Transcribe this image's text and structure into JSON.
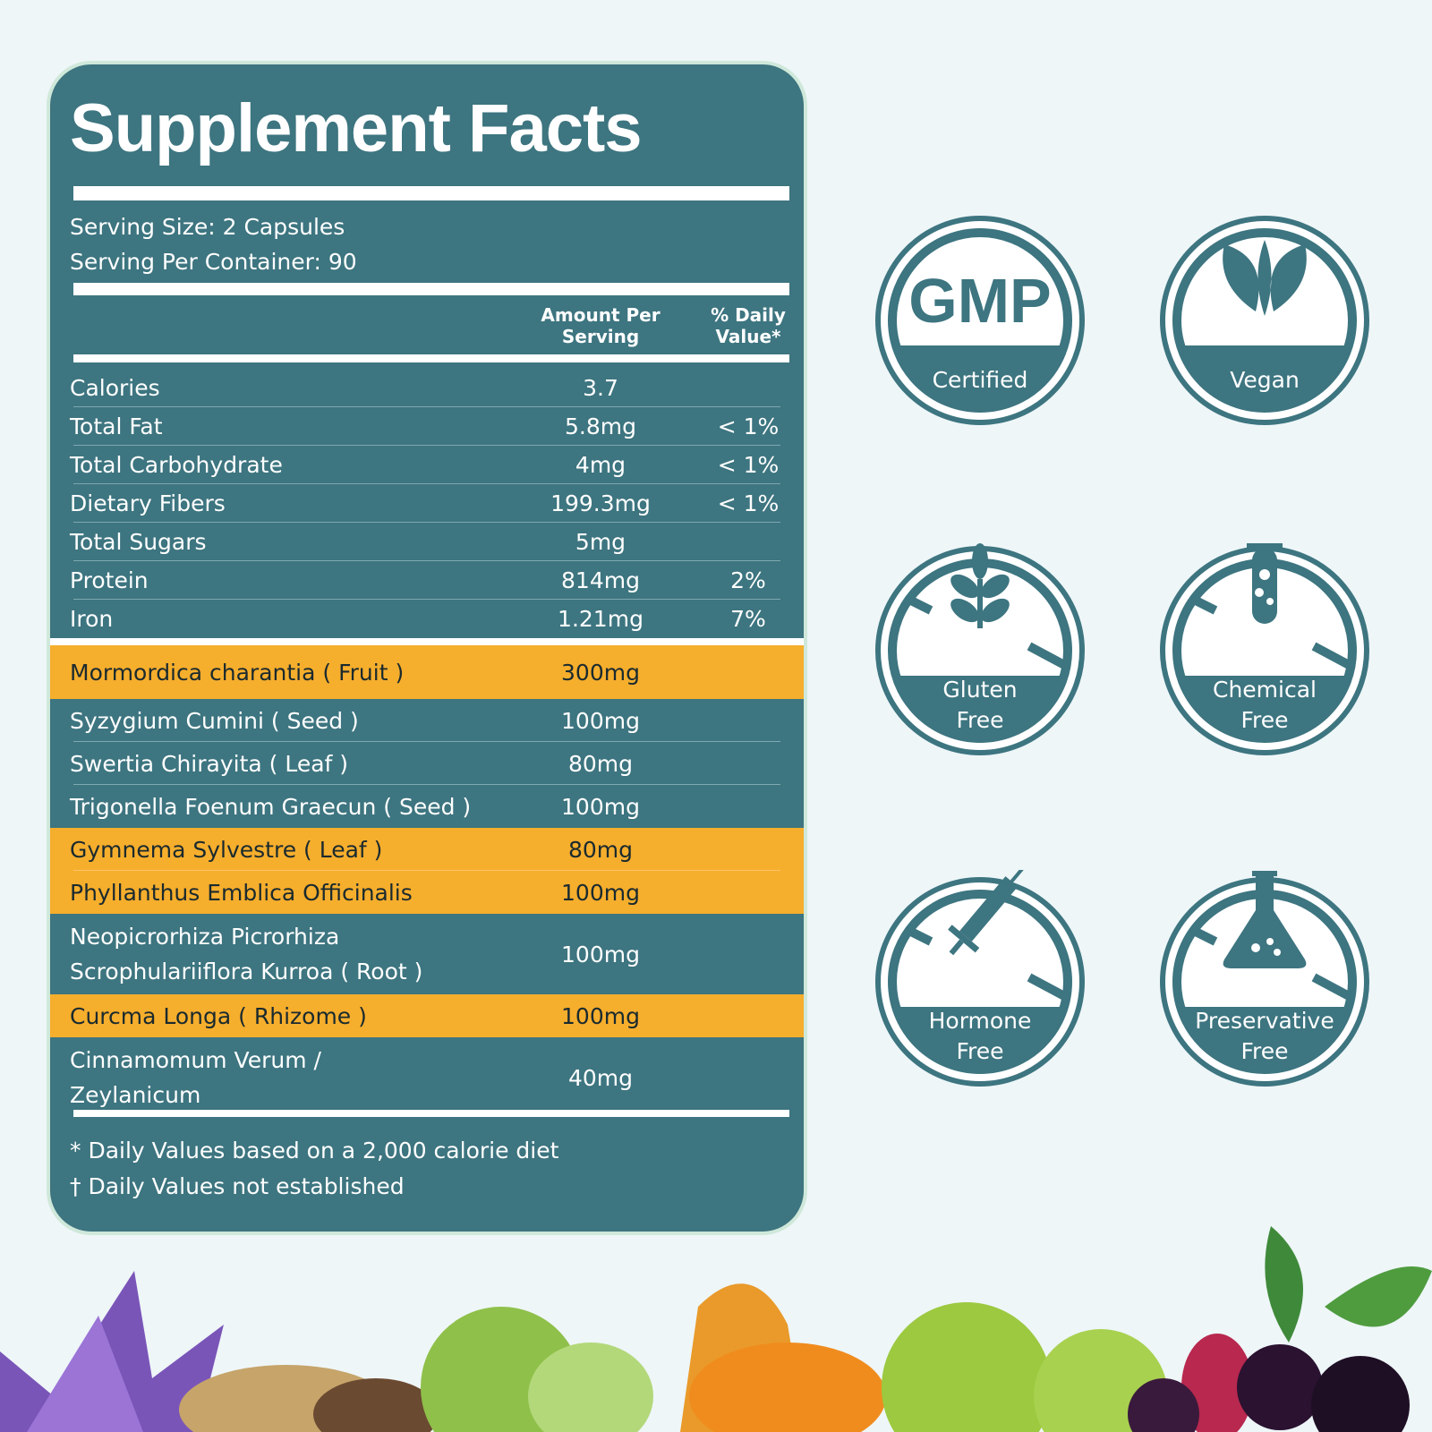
{
  "title": "Supplement Facts",
  "serving": [
    "Serving Size: 2 Capsules",
    "Serving Per Container: 90"
  ],
  "table": {
    "header": [
      [
        "Amount Per",
        "Serving"
      ],
      [
        "% Daily",
        "Value*"
      ]
    ],
    "rows": [
      {
        "name": [
          "Calories"
        ],
        "amount": "3.7"
      },
      {
        "name": [
          "Total Fat"
        ],
        "amount": "5.8mg",
        "dv": "< 1%"
      },
      {
        "name": [
          "Total Carbohydrate"
        ],
        "amount": "4mg",
        "dv": "< 1%"
      },
      {
        "name": [
          "Dietary Fibers"
        ],
        "amount": "199.3mg",
        "dv": "< 1%"
      },
      {
        "name": [
          "Total Sugars"
        ],
        "amount": "5mg"
      },
      {
        "name": [
          "Protein"
        ],
        "amount": "814mg",
        "dv": "2%"
      },
      {
        "name": [
          "Iron"
        ],
        "amount": "1.21mg",
        "dv": "7%"
      },
      {
        "name": [
          "Mormordica charantia  ( Fruit )"
        ],
        "amount": "300mg",
        "highlight": true
      },
      {
        "name": [
          "Syzygium Cumini ( Seed )"
        ],
        "amount": "100mg"
      },
      {
        "name": [
          "Swertia Chirayita ( Leaf )"
        ],
        "amount": "80mg"
      },
      {
        "name": [
          "Trigonella Foenum Graecun ( Seed )"
        ],
        "amount": "100mg"
      },
      {
        "name": [
          "Gymnema Sylvestre ( Leaf )"
        ],
        "amount": "80mg",
        "highlight": true
      },
      {
        "name": [
          "Phyllanthus Emblica Officinalis"
        ],
        "amount": "100mg",
        "highlight": true
      },
      {
        "name": [
          "Neopicrorhiza Picrorhiza",
          "Scrophulariiflora Kurroa ( Root )"
        ],
        "amount": "100mg"
      },
      {
        "name": [
          "Curcma Longa ( Rhizome )"
        ],
        "amount": "100mg",
        "highlight": true
      },
      {
        "name": [
          "Cinnamomum Verum /",
          "Zeylanicum"
        ],
        "amount": "40mg"
      }
    ]
  },
  "footnotes": [
    "* Daily Values based on a 2,000 calorie diet",
    "† Daily Values not established"
  ],
  "badges": [
    {
      "title": "GMP",
      "label": [
        "Certified"
      ]
    },
    {
      "label": [
        "Vegan"
      ]
    },
    {
      "label": [
        "Gluten",
        "Free"
      ]
    },
    {
      "label": [
        "Chemical",
        "Free"
      ]
    },
    {
      "label": [
        "Hormone",
        "Free"
      ]
    },
    {
      "label": [
        "Preservative",
        "Free"
      ]
    }
  ]
}
